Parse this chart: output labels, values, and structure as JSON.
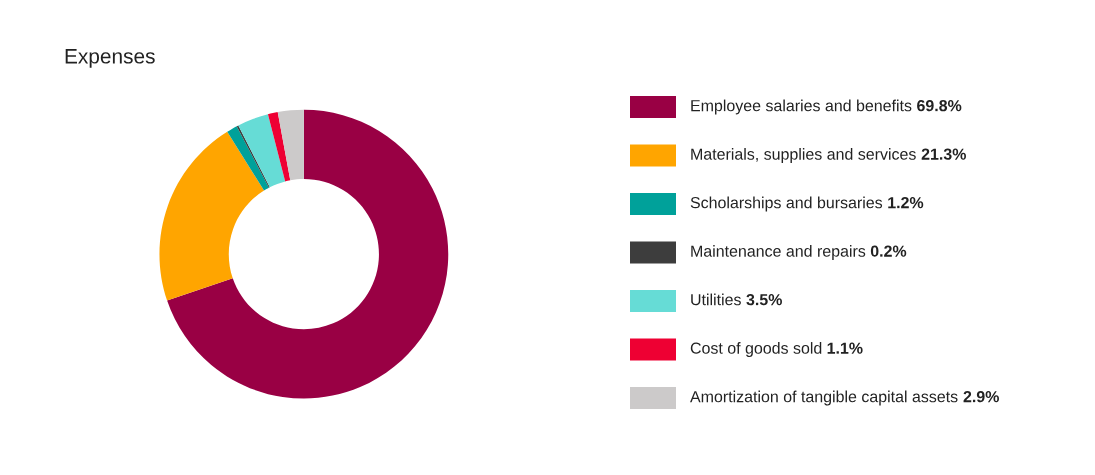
{
  "chart_data": {
    "type": "donut",
    "title": "Expenses",
    "categories": [
      "Employee salaries and benefits",
      "Materials, supplies and services",
      "Scholarships and bursaries",
      "Maintenance and repairs",
      "Utilities",
      "Cost of goods sold",
      "Amortization of tangible capital assets"
    ],
    "values": [
      69.8,
      21.3,
      1.2,
      0.2,
      3.5,
      1.1,
      2.9
    ],
    "value_labels": [
      "69.8%",
      "21.3%",
      "1.2%",
      "0.2%",
      "3.5%",
      "1.1%",
      "2.9%"
    ],
    "colors": [
      "#990044",
      "#ffa500",
      "#00a19a",
      "#3d3d3d",
      "#66dcd6",
      "#ee0033",
      "#cccaca"
    ],
    "legend": "right"
  }
}
